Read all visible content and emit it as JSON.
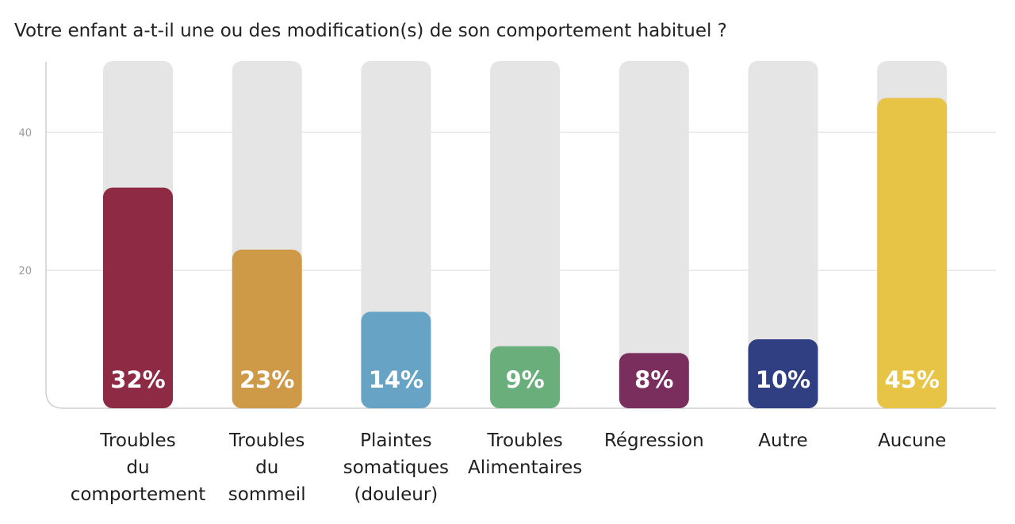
{
  "chart_data": {
    "type": "bar",
    "title": "Votre enfant a-t-il une ou des modification(s) de son comportement habituel ?",
    "categories": [
      [
        "Troubles",
        "du",
        "comportement"
      ],
      [
        "Troubles",
        "du",
        "sommeil"
      ],
      [
        "Plaintes",
        "somatiques",
        "(douleur)"
      ],
      [
        "Troubles",
        "Alimentaires"
      ],
      [
        "Régression"
      ],
      [
        "Autre"
      ],
      [
        "Aucune"
      ]
    ],
    "values": [
      32,
      23,
      14,
      9,
      8,
      10,
      45
    ],
    "data_labels": [
      "32%",
      "23%",
      "14%",
      "9%",
      "8%",
      "10%",
      "45%"
    ],
    "colors": [
      "#8e2a44",
      "#cf9a47",
      "#67a3c4",
      "#6aae7c",
      "#7a2e5e",
      "#303e82",
      "#e8c446"
    ],
    "track_color": "#e5e5e5",
    "ylim": [
      0,
      50
    ],
    "yticks": [
      20,
      40
    ],
    "grid": true
  }
}
